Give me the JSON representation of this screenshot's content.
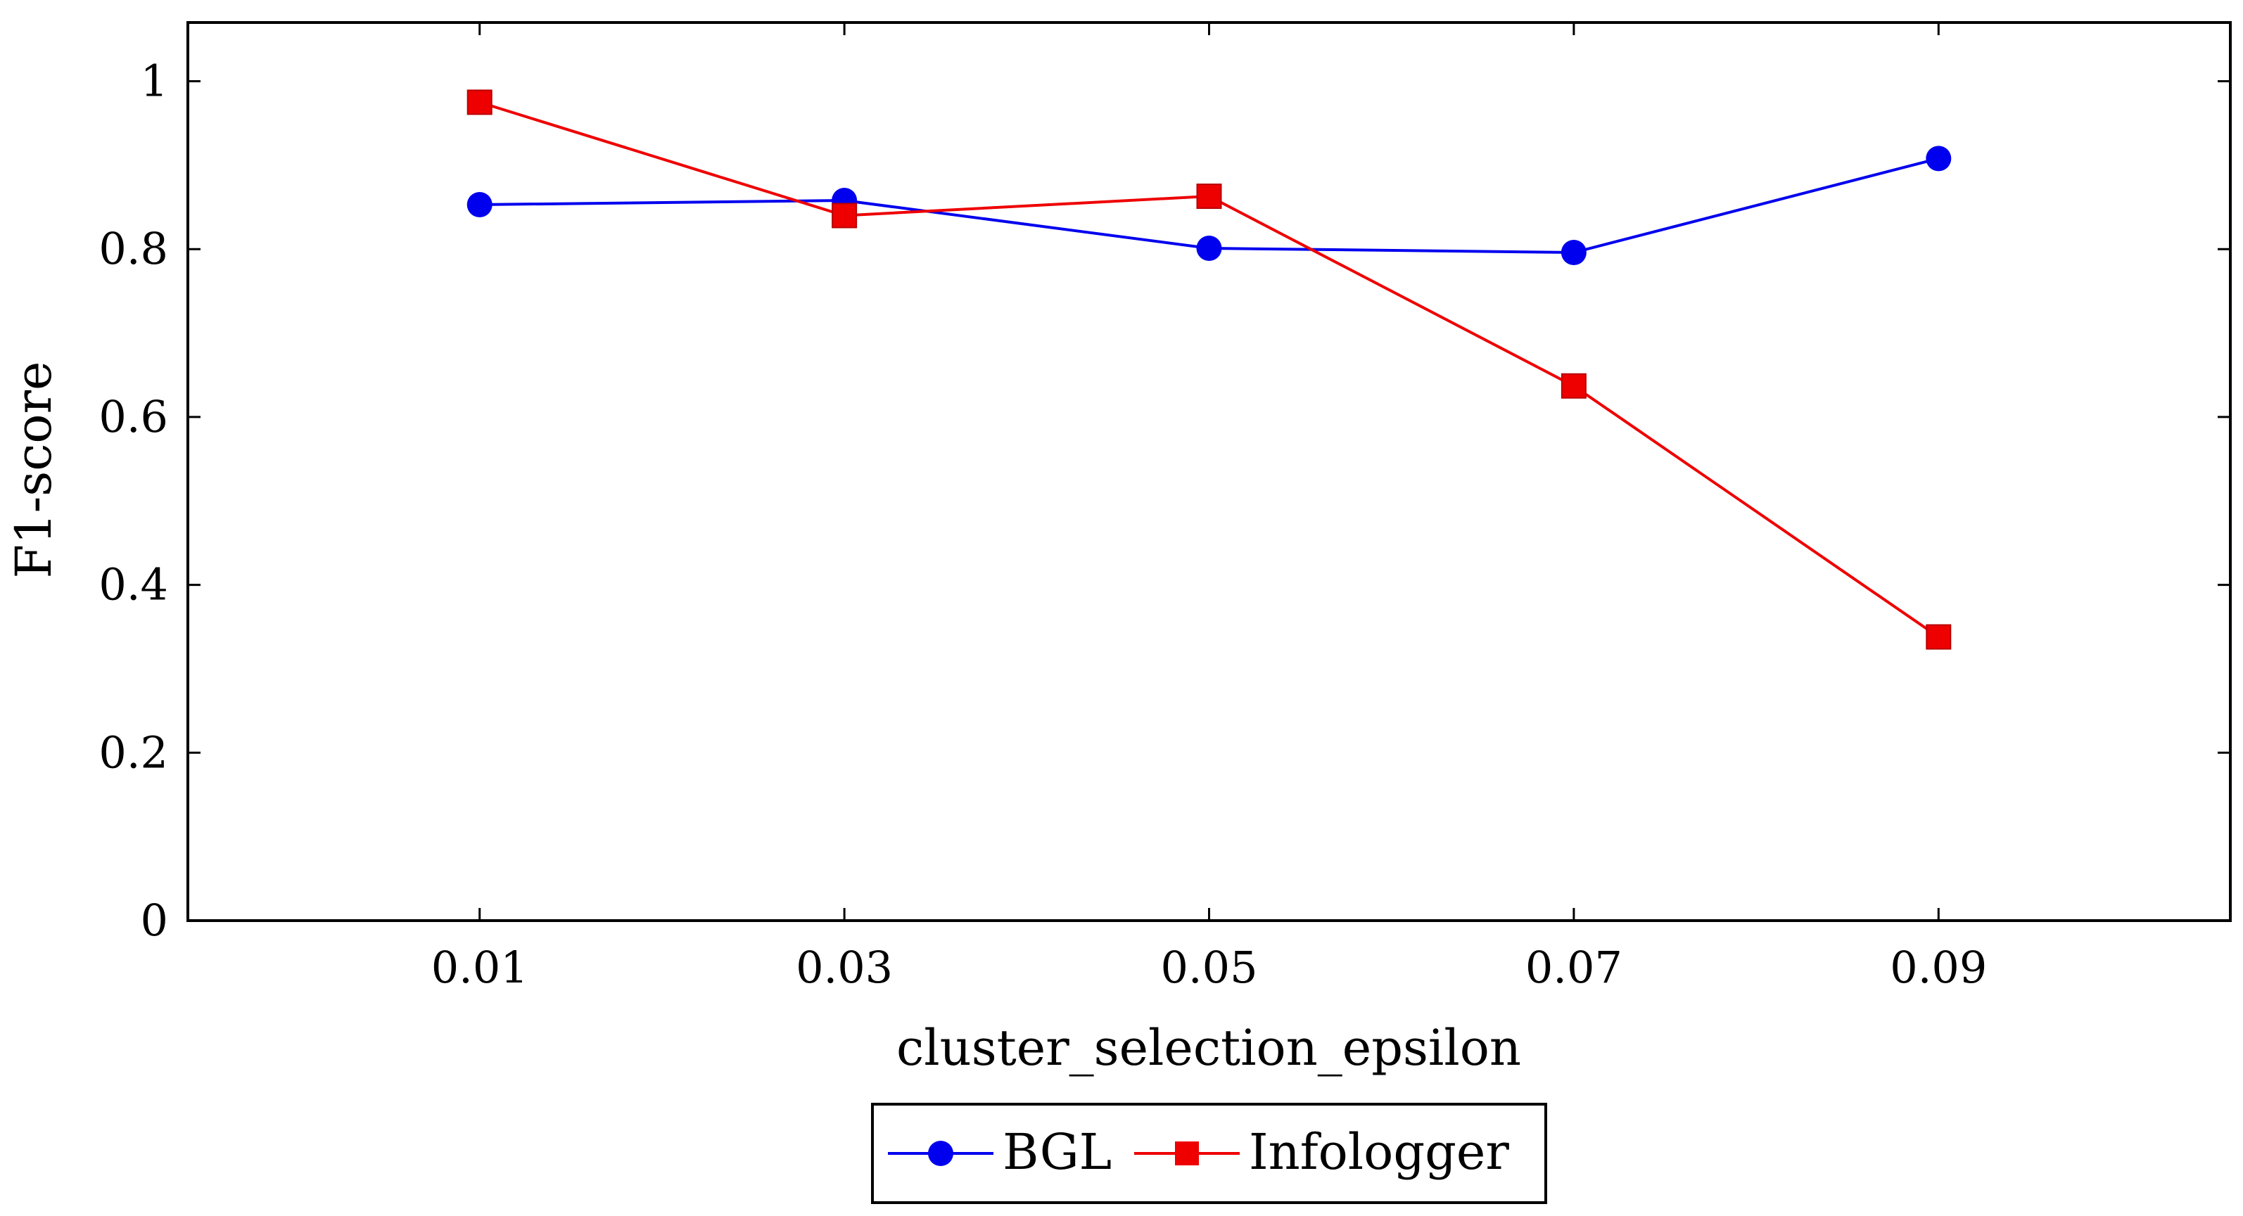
{
  "chart_data": {
    "type": "line",
    "title": "",
    "xlabel": "cluster_selection_epsilon",
    "ylabel": "F1-score",
    "categories": [
      "0.01",
      "0.03",
      "0.05",
      "0.07",
      "0.09"
    ],
    "x": [
      0.01,
      0.03,
      0.05,
      0.07,
      0.09
    ],
    "xlim": [
      -0.006,
      0.106
    ],
    "ylim": [
      0,
      1.07
    ],
    "yticks": [
      0,
      0.2,
      0.4,
      0.6,
      0.8,
      1
    ],
    "ytick_labels": [
      "0",
      "0.2",
      "0.4",
      "0.6",
      "0.8",
      "1"
    ],
    "grid": false,
    "legend_position": "bottom-center",
    "series": [
      {
        "name": "BGL",
        "color": "#0000ee",
        "marker": "circle",
        "values": [
          0.853,
          0.858,
          0.801,
          0.796,
          0.908
        ]
      },
      {
        "name": "Infologger",
        "color": "#ee0000",
        "marker": "square",
        "values": [
          0.975,
          0.84,
          0.863,
          0.637,
          0.338
        ]
      }
    ]
  }
}
